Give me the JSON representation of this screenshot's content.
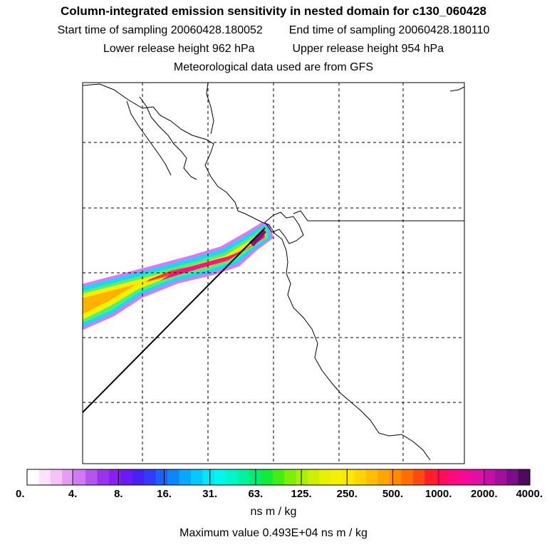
{
  "header": {
    "title": "Column-integrated emission sensitivity in nested domain for c130_060428",
    "start_label": "Start time of sampling 20060428.180052",
    "end_label": "End time of sampling 20060428.180110",
    "lower_label": "Lower release height  962 hPa",
    "upper_label": "Upper release height  954 hPa",
    "met_label": "Meteorological data used are from GFS"
  },
  "colorbar": {
    "tick_labels": [
      "0.",
      "4.",
      "8.",
      "16.",
      "31.",
      "63.",
      "125.",
      "250.",
      "500.",
      "1000.",
      "2000.",
      "4000."
    ],
    "colors": [
      "#ffffff",
      "#fbe3fb",
      "#f4c2f7",
      "#e59cf5",
      "#cf7af2",
      "#b555ef",
      "#9a33ec",
      "#8a1ff0",
      "#6a1af2",
      "#4a20f5",
      "#2f3cf8",
      "#1a62fb",
      "#0d86fd",
      "#08a8fd",
      "#06c8fc",
      "#05e5f5",
      "#00f7ee",
      "#00f5c8",
      "#00f2a0",
      "#00ee70",
      "#10ec3a",
      "#44ec10",
      "#7cee08",
      "#aaef06",
      "#ccf000",
      "#e6f200",
      "#f6f000",
      "#fde800",
      "#ffd600",
      "#ffbf00",
      "#ffa500",
      "#ff8c00",
      "#ff6f00",
      "#ff4a10",
      "#ff1f28",
      "#ff0d5a",
      "#ff0a7f",
      "#f50a95",
      "#e00fa6",
      "#c410a6",
      "#a0109b",
      "#7a0e86",
      "#500a5c"
    ]
  },
  "units_label": "ns m / kg",
  "max_label": "Maximum value  0.493E+04 ns m / kg"
}
